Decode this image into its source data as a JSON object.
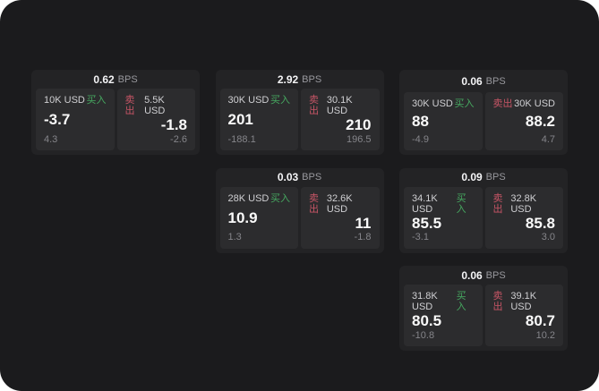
{
  "labels": {
    "bps_unit": "BPS",
    "buy": "买入",
    "sell": "卖出"
  },
  "colors": {
    "app_bg": "#1b1b1d",
    "card_bg": "#232325",
    "panel_bg": "#2c2c2e",
    "buy_green": "#46a860",
    "sell_red": "#c75566"
  },
  "cards": [
    {
      "bps": "0.62",
      "buy": {
        "amount": "10K USD",
        "value": "-3.7",
        "sub": "4.3"
      },
      "sell": {
        "amount": "5.5K USD",
        "value": "-1.8",
        "sub": "-2.6"
      }
    },
    {
      "bps": "2.92",
      "buy": {
        "amount": "30K USD",
        "value": "201",
        "sub": "-188.1"
      },
      "sell": {
        "amount": "30.1K USD",
        "value": "210",
        "sub": "196.5"
      }
    },
    {
      "bps": "0.06",
      "buy": {
        "amount": "30K USD",
        "value": "88",
        "sub": "-4.9"
      },
      "sell": {
        "amount": "30K USD",
        "value": "88.2",
        "sub": "4.7"
      }
    },
    {
      "bps": "0.03",
      "buy": {
        "amount": "28K USD",
        "value": "10.9",
        "sub": "1.3"
      },
      "sell": {
        "amount": "32.6K USD",
        "value": "11",
        "sub": "-1.8"
      }
    },
    {
      "bps": "0.09",
      "buy": {
        "amount": "34.1K USD",
        "value": "85.5",
        "sub": "-3.1"
      },
      "sell": {
        "amount": "32.8K USD",
        "value": "85.8",
        "sub": "3.0"
      }
    },
    {
      "bps": "0.06",
      "buy": {
        "amount": "31.8K USD",
        "value": "80.5",
        "sub": "-10.8"
      },
      "sell": {
        "amount": "39.1K USD",
        "value": "80.7",
        "sub": "10.2"
      }
    }
  ]
}
